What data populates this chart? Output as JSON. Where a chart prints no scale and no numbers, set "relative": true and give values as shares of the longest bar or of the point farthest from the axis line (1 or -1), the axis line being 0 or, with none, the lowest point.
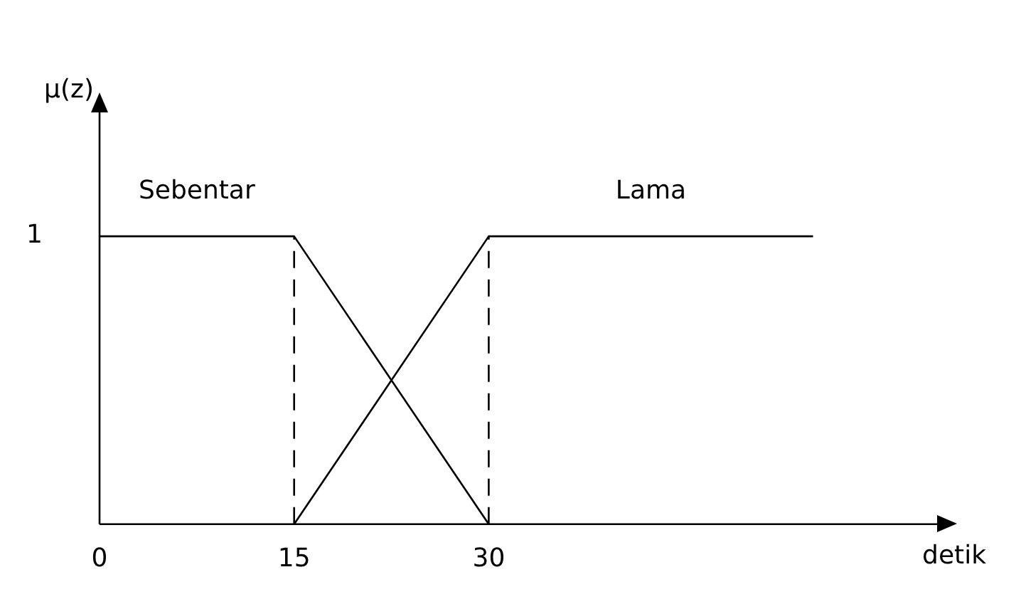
{
  "chart_data": {
    "type": "line",
    "xlabel": "detik",
    "series": [
      {
        "name": "Sebentar",
        "color": "#000000",
        "x": [
          0,
          15,
          30
        ],
        "values": [
          1,
          1,
          0
        ]
      },
      {
        "name": "Lama",
        "color": "#000000",
        "x": [
          15,
          30,
          55
        ],
        "values": [
          0,
          1,
          1
        ]
      }
    ],
    "ref_lines": [
      {
        "axis": "x",
        "value": 15,
        "color": "#000000",
        "line_style": "dashed"
      },
      {
        "axis": "x",
        "value": 30,
        "color": "#000000",
        "line_style": "dashed"
      }
    ],
    "xlim": [
      0,
      65
    ],
    "xticks": [
      0,
      15,
      30
    ],
    "relative": true,
    "annotations": [
      "μ(z)",
      {
        "text": "1",
        "x": 0,
        "y": 1
      }
    ],
    "grid": false,
    "legend": false,
    "marker": "none",
    "line_style": "solid"
  }
}
